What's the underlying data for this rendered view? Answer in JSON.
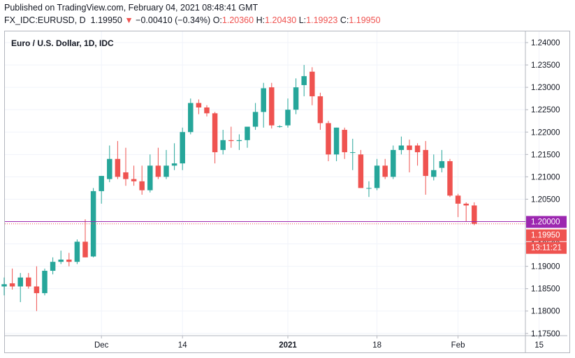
{
  "header": {
    "published": "Published on TradingView.com, February 04, 2021 08:48:41 GMT",
    "symbol": "FX_IDC:EURUSD, D",
    "last": "1.19950",
    "change": "−0.00410 (−0.34%)",
    "o_label": "O:",
    "o_value": "1.20360",
    "h_label": "H:",
    "h_value": "1.20430",
    "l_label": "L:",
    "l_value": "1.19923",
    "c_label": "C:",
    "c_value": "1.19950"
  },
  "colors": {
    "up": "#26a69a",
    "down": "#ef5350",
    "level_line": "#9c27b0",
    "grid": "#f0f3fa"
  },
  "chart_data": {
    "type": "candlestick",
    "title": "Euro / U.S. Dollar, 1D, IDC",
    "ylim": [
      1.1745,
      1.2425
    ],
    "y_ticks": [
      "1.24000",
      "1.23500",
      "1.23000",
      "1.22500",
      "1.22000",
      "1.21500",
      "1.21000",
      "1.20500",
      "1.20000",
      "1.19500",
      "1.19000",
      "1.18500",
      "1.18000",
      "1.17500"
    ],
    "x_ticks": [
      {
        "label": "Dec",
        "index": 12,
        "bold": false
      },
      {
        "label": "14",
        "index": 22,
        "bold": false
      },
      {
        "label": "2021",
        "index": 35,
        "bold": true
      },
      {
        "label": "18",
        "index": 46,
        "bold": false
      },
      {
        "label": "Feb",
        "index": 56,
        "bold": false
      },
      {
        "label": "15",
        "index": 66,
        "bold": false
      }
    ],
    "candles": [
      {
        "o": 1.1855,
        "h": 1.1875,
        "l": 1.1835,
        "c": 1.186
      },
      {
        "o": 1.1862,
        "h": 1.1895,
        "l": 1.1848,
        "c": 1.1855
      },
      {
        "o": 1.1855,
        "h": 1.1885,
        "l": 1.182,
        "c": 1.1875
      },
      {
        "o": 1.1875,
        "h": 1.1885,
        "l": 1.185,
        "c": 1.1855
      },
      {
        "o": 1.1855,
        "h": 1.19,
        "l": 1.18,
        "c": 1.184
      },
      {
        "o": 1.184,
        "h": 1.1895,
        "l": 1.1835,
        "c": 1.189
      },
      {
        "o": 1.189,
        "h": 1.192,
        "l": 1.1882,
        "c": 1.191
      },
      {
        "o": 1.191,
        "h": 1.1935,
        "l": 1.1905,
        "c": 1.1915
      },
      {
        "o": 1.1915,
        "h": 1.193,
        "l": 1.19,
        "c": 1.191
      },
      {
        "o": 1.191,
        "h": 1.196,
        "l": 1.1905,
        "c": 1.1955
      },
      {
        "o": 1.1955,
        "h": 1.2005,
        "l": 1.192,
        "c": 1.192
      },
      {
        "o": 1.1922,
        "h": 1.2075,
        "l": 1.192,
        "c": 1.2068
      },
      {
        "o": 1.2068,
        "h": 1.2102,
        "l": 1.204,
        "c": 1.2102
      },
      {
        "o": 1.2095,
        "h": 1.217,
        "l": 1.2088,
        "c": 1.214
      },
      {
        "o": 1.214,
        "h": 1.218,
        "l": 1.2095,
        "c": 1.21
      },
      {
        "o": 1.211,
        "h": 1.2165,
        "l": 1.208,
        "c": 1.2095
      },
      {
        "o": 1.2095,
        "h": 1.2125,
        "l": 1.208,
        "c": 1.209
      },
      {
        "o": 1.209,
        "h": 1.2125,
        "l": 1.206,
        "c": 1.207
      },
      {
        "o": 1.207,
        "h": 1.215,
        "l": 1.2065,
        "c": 1.2125
      },
      {
        "o": 1.2125,
        "h": 1.2165,
        "l": 1.2095,
        "c": 1.21
      },
      {
        "o": 1.21,
        "h": 1.216,
        "l": 1.2095,
        "c": 1.2125
      },
      {
        "o": 1.2125,
        "h": 1.2175,
        "l": 1.2115,
        "c": 1.213
      },
      {
        "o": 1.213,
        "h": 1.221,
        "l": 1.2115,
        "c": 1.22
      },
      {
        "o": 1.22,
        "h": 1.2275,
        "l": 1.2195,
        "c": 1.2265
      },
      {
        "o": 1.2265,
        "h": 1.2273,
        "l": 1.224,
        "c": 1.2255
      },
      {
        "o": 1.2255,
        "h": 1.226,
        "l": 1.2235,
        "c": 1.2242
      },
      {
        "o": 1.2242,
        "h": 1.2245,
        "l": 1.213,
        "c": 1.2155
      },
      {
        "o": 1.216,
        "h": 1.2205,
        "l": 1.215,
        "c": 1.2182
      },
      {
        "o": 1.2182,
        "h": 1.2212,
        "l": 1.2165,
        "c": 1.218
      },
      {
        "o": 1.218,
        "h": 1.2195,
        "l": 1.216,
        "c": 1.2182
      },
      {
        "o": 1.2182,
        "h": 1.221,
        "l": 1.2165,
        "c": 1.2212
      },
      {
        "o": 1.2212,
        "h": 1.2265,
        "l": 1.2205,
        "c": 1.2245
      },
      {
        "o": 1.2245,
        "h": 1.231,
        "l": 1.221,
        "c": 1.2298
      },
      {
        "o": 1.23,
        "h": 1.231,
        "l": 1.2208,
        "c": 1.2215
      },
      {
        "o": 1.2213,
        "h": 1.2215,
        "l": 1.221,
        "c": 1.2213
      },
      {
        "o": 1.2215,
        "h": 1.2275,
        "l": 1.221,
        "c": 1.225
      },
      {
        "o": 1.225,
        "h": 1.232,
        "l": 1.224,
        "c": 1.23
      },
      {
        "o": 1.2305,
        "h": 1.235,
        "l": 1.228,
        "c": 1.2325
      },
      {
        "o": 1.2335,
        "h": 1.2345,
        "l": 1.226,
        "c": 1.228
      },
      {
        "o": 1.228,
        "h": 1.2288,
        "l": 1.2205,
        "c": 1.222
      },
      {
        "o": 1.222,
        "h": 1.2225,
        "l": 1.2135,
        "c": 1.215
      },
      {
        "o": 1.215,
        "h": 1.221,
        "l": 1.2135,
        "c": 1.221
      },
      {
        "o": 1.2205,
        "h": 1.221,
        "l": 1.214,
        "c": 1.2155
      },
      {
        "o": 1.2155,
        "h": 1.2185,
        "l": 1.2115,
        "c": 1.2155
      },
      {
        "o": 1.215,
        "h": 1.216,
        "l": 1.2075,
        "c": 1.2075
      },
      {
        "o": 1.2075,
        "h": 1.209,
        "l": 1.2055,
        "c": 1.2075
      },
      {
        "o": 1.2075,
        "h": 1.214,
        "l": 1.207,
        "c": 1.2125
      },
      {
        "o": 1.2125,
        "h": 1.214,
        "l": 1.2095,
        "c": 1.21
      },
      {
        "o": 1.21,
        "h": 1.217,
        "l": 1.2095,
        "c": 1.216
      },
      {
        "o": 1.216,
        "h": 1.219,
        "l": 1.215,
        "c": 1.217
      },
      {
        "o": 1.217,
        "h": 1.2183,
        "l": 1.211,
        "c": 1.216
      },
      {
        "o": 1.217,
        "h": 1.2175,
        "l": 1.2125,
        "c": 1.2155
      },
      {
        "o": 1.216,
        "h": 1.218,
        "l": 1.206,
        "c": 1.2102
      },
      {
        "o": 1.21,
        "h": 1.215,
        "l": 1.2092,
        "c": 1.2115
      },
      {
        "o": 1.212,
        "h": 1.216,
        "l": 1.211,
        "c": 1.2135
      },
      {
        "o": 1.2135,
        "h": 1.214,
        "l": 1.2055,
        "c": 1.2058
      },
      {
        "o": 1.2058,
        "h": 1.2062,
        "l": 1.201,
        "c": 1.204
      },
      {
        "o": 1.204,
        "h": 1.2043,
        "l": 1.2,
        "c": 1.2036
      },
      {
        "o": 1.2036,
        "h": 1.2043,
        "l": 1.1992,
        "c": 1.1995
      }
    ],
    "level_line": {
      "value": 1.2,
      "label": "1.20000"
    },
    "last_price": {
      "value": 1.1995,
      "label": "1.19950"
    },
    "countdown": "13:11:21"
  }
}
